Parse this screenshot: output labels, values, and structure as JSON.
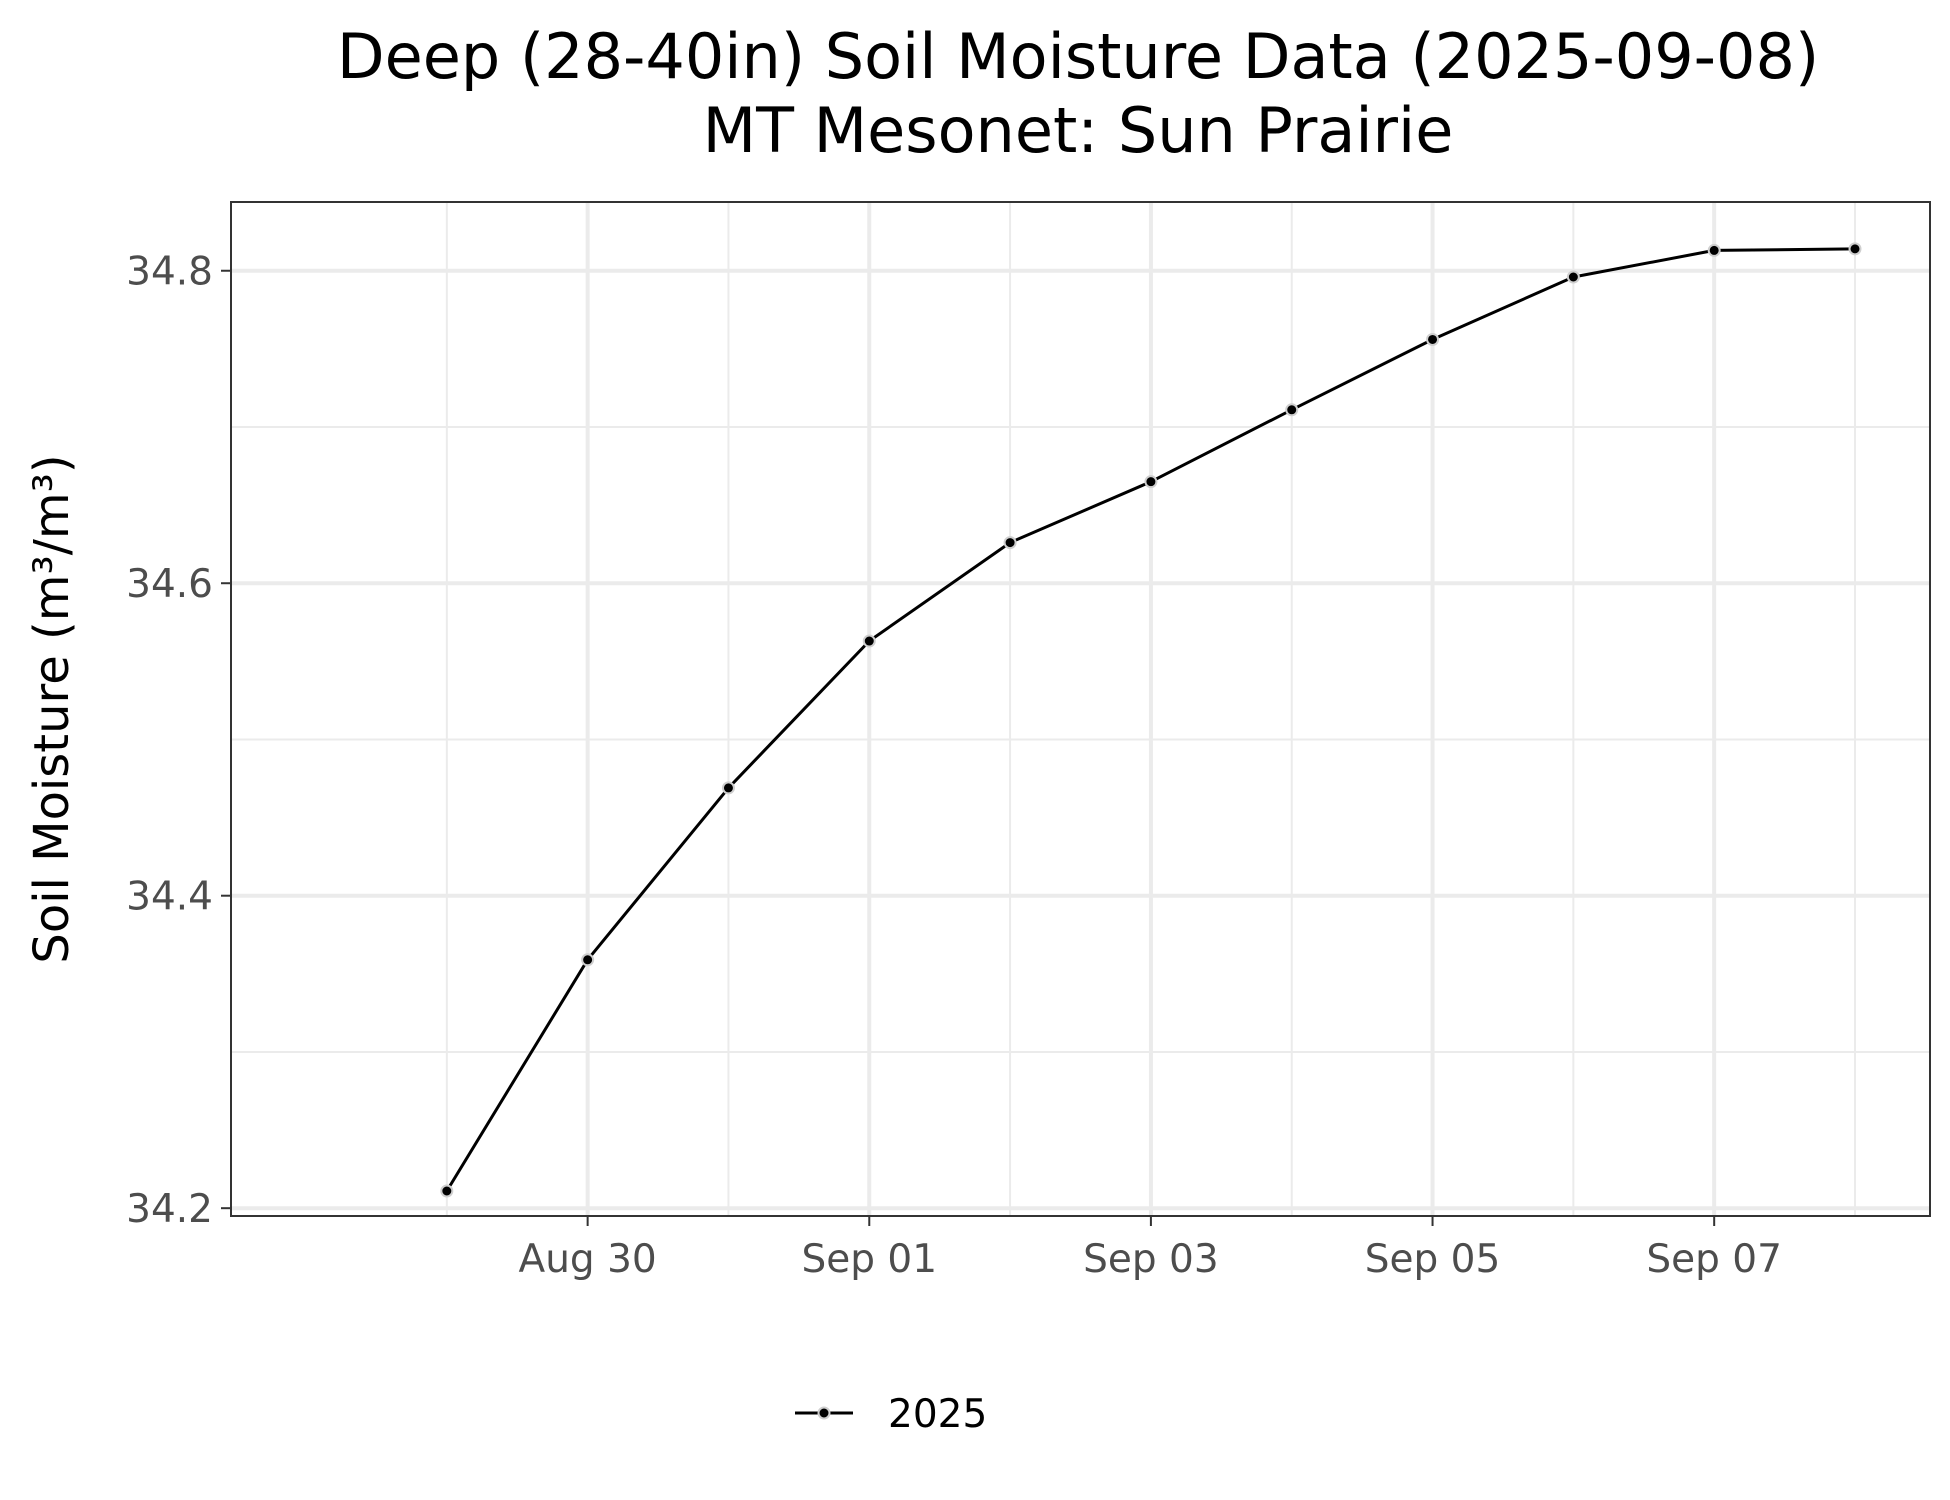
{
  "chart_data": {
    "type": "line",
    "title": "Deep (28-40in) Soil Moisture Data (2025-09-08)",
    "subtitle": "MT Mesonet: Sun Prairie",
    "xlabel": "",
    "ylabel": "Soil Moisture (m³/m³)",
    "x": [
      "2025-08-29",
      "2025-08-30",
      "2025-08-31",
      "2025-09-01",
      "2025-09-02",
      "2025-09-03",
      "2025-09-04",
      "2025-09-05",
      "2025-09-06",
      "2025-09-07",
      "2025-09-08"
    ],
    "series": [
      {
        "name": "2025",
        "color": "#000000",
        "values": [
          34.211,
          34.359,
          34.469,
          34.563,
          34.626,
          34.665,
          34.711,
          34.756,
          34.796,
          34.813,
          34.814
        ]
      }
    ],
    "xlim": [
      "2025-08-28",
      "2025-09-08"
    ],
    "ylim": [
      34.195,
      34.844
    ],
    "x_ticks": [
      {
        "date": "2025-08-30",
        "label": "Aug 30"
      },
      {
        "date": "2025-09-01",
        "label": "Sep 01"
      },
      {
        "date": "2025-09-03",
        "label": "Sep 03"
      },
      {
        "date": "2025-09-05",
        "label": "Sep 05"
      },
      {
        "date": "2025-09-07",
        "label": "Sep 07"
      }
    ],
    "y_ticks": [
      34.2,
      34.4,
      34.6,
      34.8
    ],
    "grid": true,
    "legend_position": "bottom"
  }
}
